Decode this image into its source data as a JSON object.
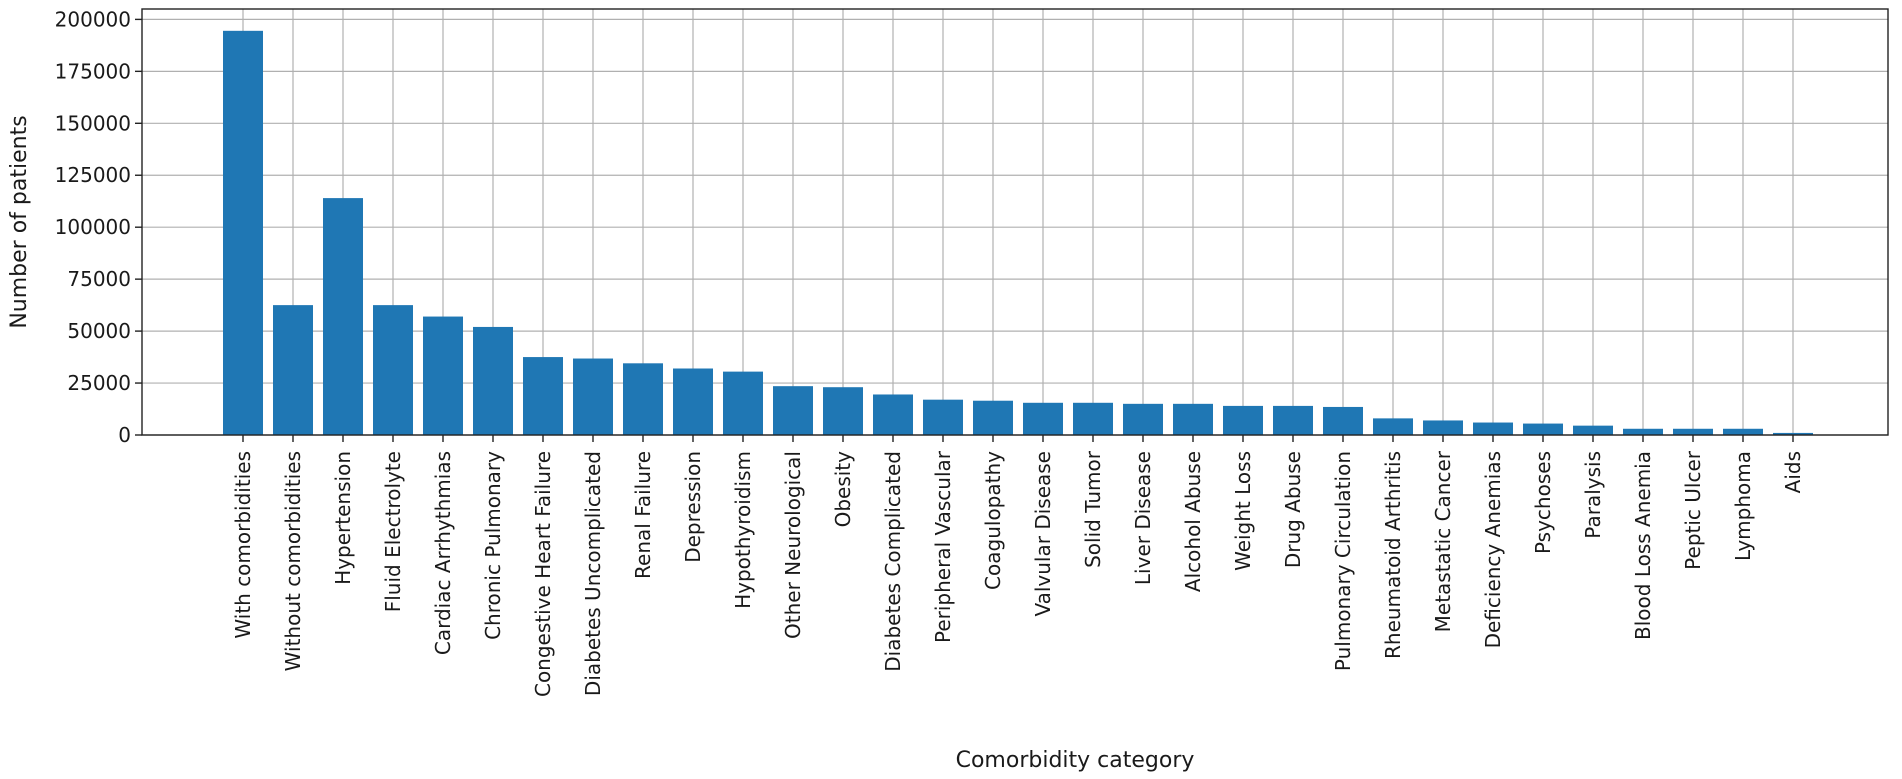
{
  "chart_data": {
    "type": "bar",
    "title": "",
    "xlabel": "Comorbidity category",
    "ylabel": "Number of patients",
    "ylim": [
      0,
      205000
    ],
    "yticks": [
      0,
      25000,
      50000,
      75000,
      100000,
      125000,
      150000,
      175000,
      200000
    ],
    "ytick_labels": [
      "0",
      "25000",
      "50000",
      "75000",
      "100000",
      "125000",
      "150000",
      "175000",
      "200000"
    ],
    "grid": true,
    "bar_color": "#1f77b4",
    "categories": [
      "With comorbidities",
      "Without comorbidities",
      "Hypertension",
      "Fluid Electrolyte",
      "Cardiac Arrhythmias",
      "Chronic Pulmonary",
      "Congestive Heart Failure",
      "Diabetes Uncomplicated",
      "Renal Failure",
      "Depression",
      "Hypothyroidism",
      "Other Neurological",
      "Obesity",
      "Diabetes Complicated",
      "Peripheral Vascular",
      "Coagulopathy",
      "Valvular Disease",
      "Solid Tumor",
      "Liver Disease",
      "Alcohol Abuse",
      "Weight Loss",
      "Drug Abuse",
      "Pulmonary Circulation",
      "Rheumatoid Arthritis",
      "Metastatic Cancer",
      "Deficiency Anemias",
      "Psychoses",
      "Paralysis",
      "Blood Loss Anemia",
      "Peptic Ulcer",
      "Lymphoma",
      "Aids"
    ],
    "values": [
      194500,
      62500,
      114000,
      62500,
      57000,
      52000,
      37500,
      36800,
      34500,
      32000,
      30500,
      23500,
      23000,
      19500,
      17000,
      16500,
      15500,
      15500,
      15000,
      15000,
      14000,
      14000,
      13500,
      8000,
      7000,
      6000,
      5500,
      4500,
      3000,
      3000,
      3000,
      1000
    ]
  }
}
